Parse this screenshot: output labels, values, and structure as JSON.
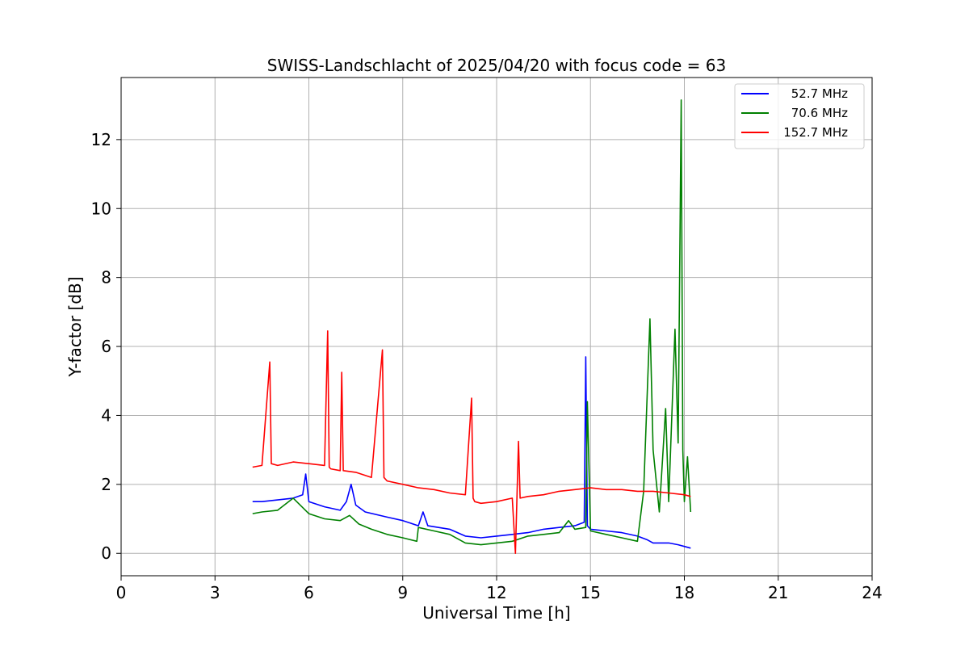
{
  "chart_data": {
    "type": "line",
    "title": "SWISS-Landschlacht of 2025/04/20 with focus code = 63",
    "xlabel": "Universal Time [h]",
    "ylabel": "Y-factor [dB]",
    "xlim": [
      0,
      24
    ],
    "ylim": [
      -0.65,
      13.8
    ],
    "xticks": [
      0,
      3,
      6,
      9,
      12,
      15,
      18,
      21,
      24
    ],
    "yticks": [
      0,
      2,
      4,
      6,
      8,
      10,
      12
    ],
    "grid": true,
    "legend_position": "top-right",
    "series": [
      {
        "name": "52.7 MHz",
        "color": "#0000ff",
        "x": [
          4.2,
          4.5,
          5.0,
          5.5,
          5.8,
          5.9,
          6.0,
          6.5,
          7.0,
          7.2,
          7.35,
          7.5,
          7.8,
          8.5,
          9.0,
          9.5,
          9.65,
          9.8,
          10.5,
          11.0,
          11.5,
          12.0,
          12.5,
          13.0,
          13.5,
          14.0,
          14.5,
          14.8,
          14.85,
          14.9,
          15.0,
          15.5,
          16.0,
          16.5,
          16.8,
          17.0,
          17.5,
          17.8,
          18.0,
          18.2
        ],
        "y": [
          1.5,
          1.5,
          1.55,
          1.6,
          1.7,
          2.3,
          1.5,
          1.35,
          1.25,
          1.5,
          2.0,
          1.4,
          1.2,
          1.05,
          0.95,
          0.8,
          1.2,
          0.8,
          0.7,
          0.5,
          0.45,
          0.5,
          0.55,
          0.6,
          0.7,
          0.75,
          0.8,
          0.9,
          5.7,
          0.8,
          0.7,
          0.65,
          0.6,
          0.5,
          0.4,
          0.3,
          0.3,
          0.25,
          0.2,
          0.15
        ]
      },
      {
        "name": "70.6 MHz",
        "color": "#008000",
        "x": [
          4.2,
          4.5,
          5.0,
          5.5,
          6.0,
          6.5,
          7.0,
          7.3,
          7.6,
          8.0,
          8.5,
          9.0,
          9.45,
          9.5,
          10.0,
          10.5,
          11.0,
          11.5,
          12.0,
          12.5,
          13.0,
          13.5,
          14.0,
          14.3,
          14.5,
          14.85,
          14.9,
          15.0,
          15.5,
          16.0,
          16.5,
          16.7,
          16.9,
          17.0,
          17.2,
          17.4,
          17.5,
          17.7,
          17.8,
          17.9,
          17.95,
          18.0,
          18.1,
          18.2
        ],
        "y": [
          1.15,
          1.2,
          1.25,
          1.6,
          1.15,
          1.0,
          0.95,
          1.1,
          0.85,
          0.7,
          0.55,
          0.45,
          0.35,
          0.75,
          0.65,
          0.55,
          0.3,
          0.25,
          0.3,
          0.35,
          0.5,
          0.55,
          0.6,
          0.95,
          0.7,
          0.75,
          4.4,
          0.65,
          0.55,
          0.45,
          0.35,
          1.8,
          6.8,
          3.0,
          1.2,
          4.2,
          1.5,
          6.5,
          3.2,
          13.15,
          3.0,
          1.5,
          2.8,
          1.2
        ]
      },
      {
        "name": "152.7 MHz",
        "color": "#ff0000",
        "x": [
          4.2,
          4.5,
          4.75,
          4.8,
          5.0,
          5.5,
          6.0,
          6.5,
          6.6,
          6.65,
          6.7,
          7.0,
          7.05,
          7.1,
          7.5,
          8.0,
          8.35,
          8.4,
          8.5,
          9.0,
          9.5,
          10.0,
          10.5,
          11.0,
          11.2,
          11.25,
          11.3,
          11.5,
          12.0,
          12.5,
          12.6,
          12.7,
          12.75,
          13.0,
          13.5,
          14.0,
          14.5,
          15.0,
          15.5,
          16.0,
          16.5,
          17.0,
          17.5,
          18.0,
          18.2
        ],
        "y": [
          2.5,
          2.55,
          5.55,
          2.6,
          2.55,
          2.65,
          2.6,
          2.55,
          6.45,
          2.5,
          2.45,
          2.4,
          5.25,
          2.4,
          2.35,
          2.2,
          5.9,
          2.2,
          2.1,
          2.0,
          1.9,
          1.85,
          1.75,
          1.7,
          4.5,
          1.6,
          1.5,
          1.45,
          1.5,
          1.6,
          0.0,
          3.25,
          1.6,
          1.65,
          1.7,
          1.8,
          1.85,
          1.9,
          1.85,
          1.85,
          1.8,
          1.8,
          1.75,
          1.7,
          1.65
        ]
      }
    ]
  }
}
